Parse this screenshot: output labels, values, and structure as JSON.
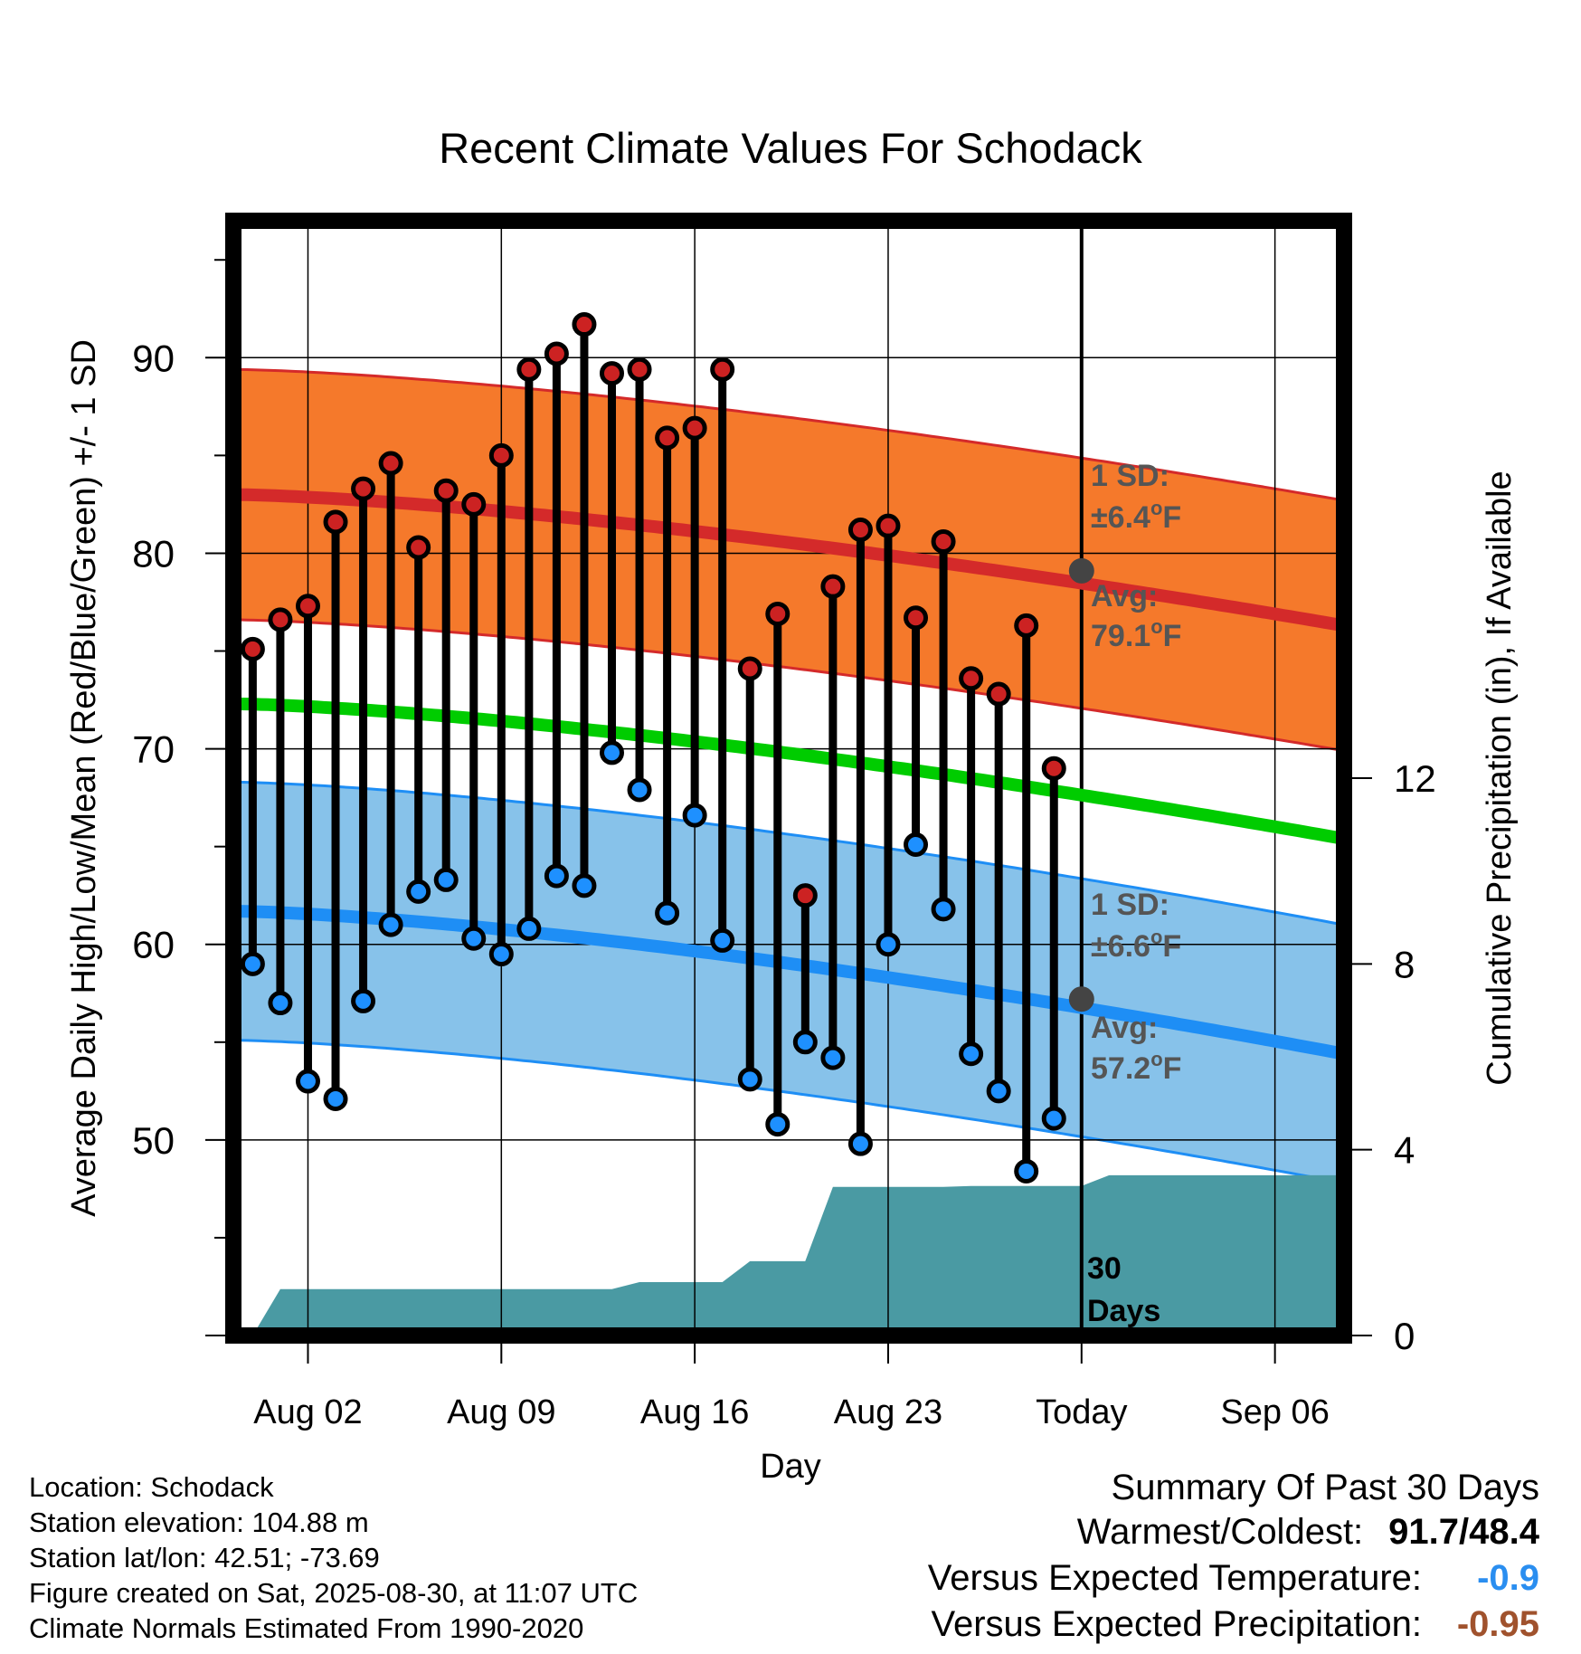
{
  "chart_data": {
    "type": "line",
    "title": "Recent Climate Values For Schodack",
    "xlabel": "Day",
    "ylabel": "Average Daily High/Low/Mean (Red/Blue/Green) +/- 1 SD",
    "y2label": "Cumulative Precipitation (in), If Available",
    "ylim": [
      40,
      97
    ],
    "y2lim": [
      0,
      24
    ],
    "yticks": [
      50,
      60,
      70,
      80,
      90
    ],
    "y2ticks": [
      0,
      4,
      8,
      12
    ],
    "x_ticks": [
      {
        "label": "Aug 02",
        "day": 2
      },
      {
        "label": "Aug 09",
        "day": 9
      },
      {
        "label": "Aug 16",
        "day": 16
      },
      {
        "label": "Aug 23",
        "day": 23
      },
      {
        "label": "Today",
        "day": 30
      },
      {
        "label": "Sep 06",
        "day": 37
      }
    ],
    "x_range_days": [
      -0.7,
      39.5
    ],
    "today_day": 30,
    "grid": true,
    "days": [
      "Jul 31",
      "Aug 01",
      "Aug 02",
      "Aug 03",
      "Aug 04",
      "Aug 05",
      "Aug 06",
      "Aug 07",
      "Aug 08",
      "Aug 09",
      "Aug 10",
      "Aug 11",
      "Aug 12",
      "Aug 13",
      "Aug 14",
      "Aug 15",
      "Aug 16",
      "Aug 17",
      "Aug 18",
      "Aug 19",
      "Aug 20",
      "Aug 21",
      "Aug 22",
      "Aug 23",
      "Aug 24",
      "Aug 25",
      "Aug 26",
      "Aug 27",
      "Aug 28",
      "Aug 29"
    ],
    "series": [
      {
        "name": "High",
        "color": "#cc2222",
        "values": [
          75.1,
          76.6,
          77.3,
          81.6,
          83.3,
          84.6,
          80.3,
          83.2,
          82.5,
          85.0,
          89.4,
          90.2,
          91.7,
          89.2,
          89.4,
          85.9,
          86.4,
          89.4,
          74.1,
          76.9,
          62.5,
          78.3,
          81.2,
          81.4,
          76.7,
          80.6,
          73.6,
          72.8,
          76.3,
          69.0
        ]
      },
      {
        "name": "Low",
        "color": "#1e90ff",
        "values": [
          59.0,
          57.0,
          53.0,
          52.1,
          57.1,
          61.0,
          62.7,
          63.3,
          60.3,
          59.5,
          60.8,
          63.5,
          63.0,
          69.8,
          67.9,
          61.6,
          66.6,
          60.2,
          53.1,
          50.8,
          55.0,
          54.2,
          49.8,
          60.0,
          65.1,
          61.8,
          54.4,
          52.5,
          48.4,
          51.1
        ]
      }
    ],
    "normals": {
      "high_mean": {
        "start": 83.0,
        "today": 79.1,
        "end": 76.3,
        "sd": 6.4,
        "color": "#d42a2a",
        "band_color": "#f5792b"
      },
      "low_mean": {
        "start": 61.7,
        "today": 57.2,
        "end": 54.4,
        "sd": 6.6,
        "color": "#1e8ef5",
        "band_color": "#87c2ea"
      },
      "mean": {
        "start": 72.3,
        "end": 65.4,
        "color": "#00cc00"
      }
    },
    "precipitation_cumulative": {
      "color": "#4a9aa3",
      "values": [
        0.0,
        1.0,
        1.0,
        1.0,
        1.0,
        1.0,
        1.0,
        1.0,
        1.0,
        1.0,
        1.0,
        1.0,
        1.0,
        1.0,
        1.15,
        1.15,
        1.15,
        1.15,
        1.6,
        1.6,
        1.6,
        3.2,
        3.2,
        3.2,
        3.2,
        3.2,
        3.22,
        3.22,
        3.22,
        3.22,
        3.22,
        3.45,
        3.45,
        3.45,
        3.45,
        3.45,
        3.45,
        3.45,
        3.45,
        3.45,
        3.45
      ]
    },
    "annotations": {
      "high_sd_label_1": "1 SD:",
      "high_sd_label_2": "±6.4",
      "high_sd_unit": "F",
      "high_avg_label_1": "Avg:",
      "high_avg_label_2": "79.1",
      "high_avg_unit": "F",
      "low_sd_label_1": "1 SD:",
      "low_sd_label_2": "±6.6",
      "low_sd_unit": "F",
      "low_avg_label_1": "Avg:",
      "low_avg_label_2": "57.2",
      "low_avg_unit": "F",
      "degree": "o",
      "days_label_1": "30",
      "days_label_2": "Days"
    }
  },
  "station": {
    "location": "Location: Schodack",
    "elevation": "Station elevation: 104.88 m",
    "latlon": "Station lat/lon: 42.51; -73.69",
    "created": "Figure created on Sat, 2025-08-30, at 11:07 UTC",
    "normals": "Climate Normals Estimated From 1990-2020"
  },
  "summary": {
    "title": "Summary Of Past 30 Days",
    "warmest_coldest_label": "Warmest/Coldest:",
    "warmest_coldest_value": "91.7/48.4",
    "temp_label": "Versus Expected Temperature:",
    "temp_value": "-0.9",
    "temp_color": "#2a8ef0",
    "precip_label": "Versus Expected Precipitation:",
    "precip_value": "-0.95",
    "precip_color": "#a0522d"
  }
}
